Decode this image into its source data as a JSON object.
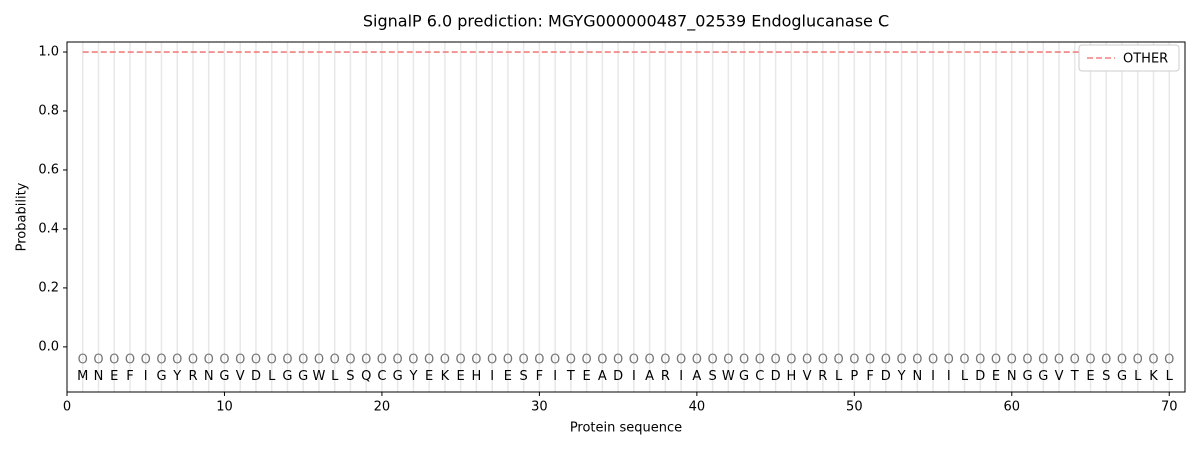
{
  "chart_data": {
    "type": "line",
    "title": "SignalP 6.0 prediction: MGYG000000487_02539 Endoglucanase C",
    "xlabel": "Protein sequence",
    "ylabel": "Probability",
    "x": [
      1,
      2,
      3,
      4,
      5,
      6,
      7,
      8,
      9,
      10,
      11,
      12,
      13,
      14,
      15,
      16,
      17,
      18,
      19,
      20,
      21,
      22,
      23,
      24,
      25,
      26,
      27,
      28,
      29,
      30,
      31,
      32,
      33,
      34,
      35,
      36,
      37,
      38,
      39,
      40,
      41,
      42,
      43,
      44,
      45,
      46,
      47,
      48,
      49,
      50,
      51,
      52,
      53,
      54,
      55,
      56,
      57,
      58,
      59,
      60,
      61,
      62,
      63,
      64,
      65,
      66,
      67,
      68,
      69,
      70
    ],
    "sequence": [
      "M",
      "N",
      "E",
      "F",
      "I",
      "G",
      "Y",
      "R",
      "N",
      "G",
      "V",
      "D",
      "L",
      "G",
      "G",
      "W",
      "L",
      "S",
      "Q",
      "C",
      "G",
      "Y",
      "E",
      "K",
      "E",
      "H",
      "I",
      "E",
      "S",
      "F",
      "I",
      "T",
      "E",
      "A",
      "D",
      "I",
      "A",
      "R",
      "I",
      "A",
      "S",
      "W",
      "G",
      "C",
      "D",
      "H",
      "V",
      "R",
      "L",
      "P",
      "F",
      "D",
      "Y",
      "N",
      "I",
      "I",
      "L",
      "D",
      "E",
      "N",
      "G",
      "G",
      "V",
      "T",
      "E",
      "S",
      "G",
      "L",
      "K",
      "L"
    ],
    "state_labels": [
      "O",
      "O",
      "O",
      "O",
      "O",
      "O",
      "O",
      "O",
      "O",
      "O",
      "O",
      "O",
      "O",
      "O",
      "O",
      "O",
      "O",
      "O",
      "O",
      "O",
      "O",
      "O",
      "O",
      "O",
      "O",
      "O",
      "O",
      "O",
      "O",
      "O",
      "O",
      "O",
      "O",
      "O",
      "O",
      "O",
      "O",
      "O",
      "O",
      "O",
      "O",
      "O",
      "O",
      "O",
      "O",
      "O",
      "O",
      "O",
      "O",
      "O",
      "O",
      "O",
      "O",
      "O",
      "O",
      "O",
      "O",
      "O",
      "O",
      "O",
      "O",
      "O",
      "O",
      "O",
      "O",
      "O",
      "O",
      "O",
      "O",
      "O"
    ],
    "series": [
      {
        "name": "OTHER",
        "color": "#f08080",
        "dashed": true,
        "values": [
          1,
          1,
          1,
          1,
          1,
          1,
          1,
          1,
          1,
          1,
          1,
          1,
          1,
          1,
          1,
          1,
          1,
          1,
          1,
          1,
          1,
          1,
          1,
          1,
          1,
          1,
          1,
          1,
          1,
          1,
          1,
          1,
          1,
          1,
          1,
          1,
          1,
          1,
          1,
          1,
          1,
          1,
          1,
          1,
          1,
          1,
          1,
          1,
          1,
          1,
          1,
          1,
          1,
          1,
          1,
          1,
          1,
          1,
          1,
          1,
          1,
          1,
          1,
          1,
          1,
          1,
          1,
          1,
          1,
          1
        ]
      }
    ],
    "xlim": [
      0,
      71
    ],
    "ylim": [
      -0.153,
      1.034
    ],
    "xticks": [
      0,
      10,
      20,
      30,
      40,
      50,
      60,
      70
    ],
    "yticks": [
      {
        "value": 0,
        "label": "0.0"
      },
      {
        "value": 0.2,
        "label": "0.2"
      },
      {
        "value": 0.4,
        "label": "0.4"
      },
      {
        "value": 0.6,
        "label": "0.6"
      },
      {
        "value": 0.8,
        "label": "0.8"
      },
      {
        "value": 1,
        "label": "1.0"
      }
    ],
    "legend": "upper right"
  }
}
